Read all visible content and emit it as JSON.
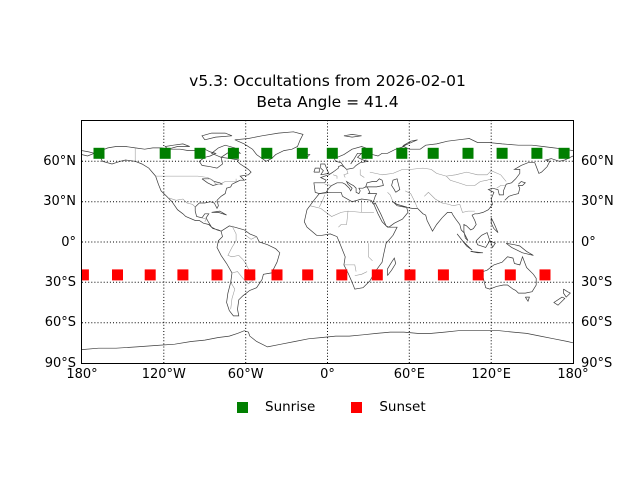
{
  "chart_data": {
    "type": "scatter",
    "projection": "equirectangular world map (cylindrical, coastlines and country borders)",
    "title": "v5.3: Occultations from 2026-02-01",
    "subtitle": "Beta Angle = 41.4",
    "xlim": [
      -180,
      180
    ],
    "ylim": [
      -90,
      90
    ],
    "x_ticks_deg": [
      -180,
      -120,
      -60,
      0,
      60,
      120,
      180
    ],
    "x_ticklabels": [
      "180°",
      "120°W",
      "60°W",
      "0°",
      "60°E",
      "120°E",
      "180°"
    ],
    "y_ticks_deg": [
      60,
      30,
      0,
      -30,
      -60,
      -90
    ],
    "y_ticklabels": [
      "60°N",
      "30°N",
      "0°",
      "30°S",
      "60°S",
      "90°S"
    ],
    "y_ticklabels_right": [
      "60°N",
      "30°N",
      "0°",
      "30°S",
      "60°S",
      "90°S"
    ],
    "grid": {
      "style": "dotted",
      "color": "#000000",
      "lat_interval_deg": 30,
      "lon_interval_deg": 60
    },
    "legend": {
      "position": "below plot, centered",
      "entries": [
        "Sunrise",
        "Sunset"
      ]
    },
    "series": [
      {
        "name": "Sunrise",
        "marker": "square",
        "color": "#007f00",
        "lat_deg": 66,
        "lons_deg": [
          -167.5,
          -119,
          -93.5,
          -69,
          -44.5,
          -18.5,
          3.5,
          29,
          54.5,
          77.5,
          103,
          128,
          153.5,
          173.5
        ]
      },
      {
        "name": "Sunset",
        "marker": "square",
        "color": "#ff0000",
        "lat_deg": -24.5,
        "lons_deg": [
          -179,
          -154,
          -130,
          -106,
          -81,
          -57,
          -37,
          -14.5,
          10.5,
          36.5,
          60.5,
          85,
          110.5,
          134,
          159.5
        ]
      }
    ]
  }
}
